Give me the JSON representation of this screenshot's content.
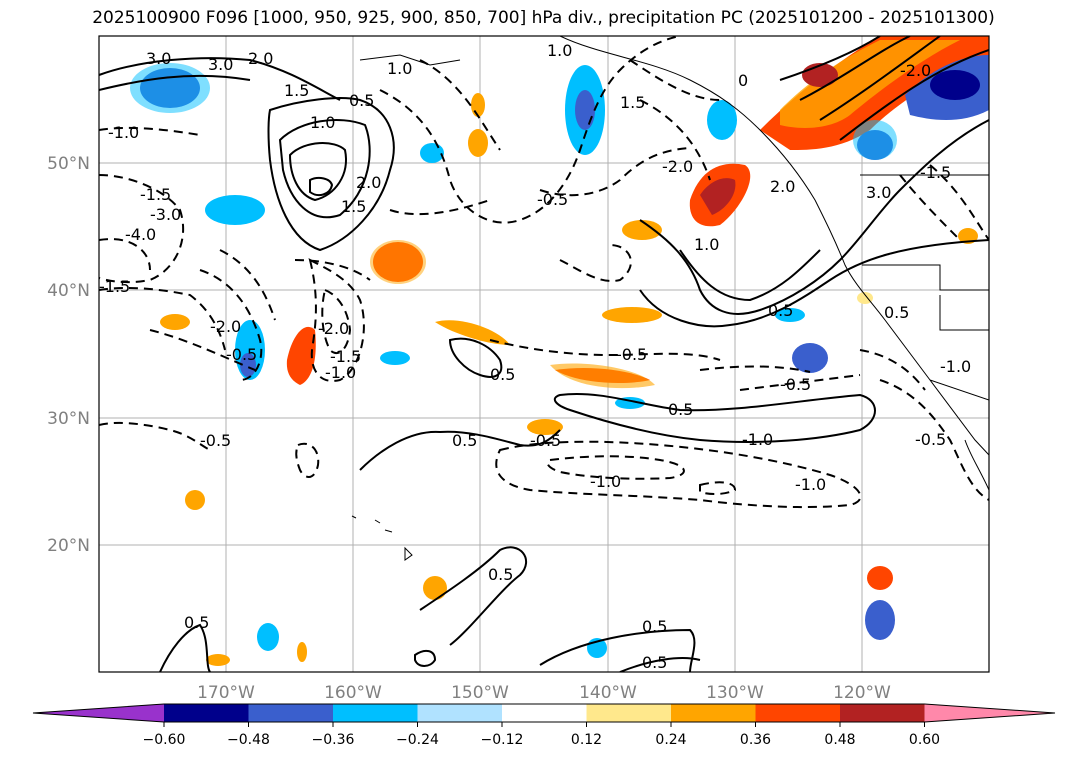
{
  "title": "2025100900 F096 [1000, 950, 925, 900, 850, 700] hPa div., precipitation PC (2025101200 - 2025101300)",
  "map": {
    "lat_labels": [
      "50°N",
      "40°N",
      "30°N",
      "20°N"
    ],
    "lon_labels": [
      "170°W",
      "160°W",
      "150°W",
      "140°W",
      "130°W",
      "120°W"
    ],
    "contour_labels": [
      "3.0",
      "3.0",
      "2.0",
      "1.5",
      "1.0",
      "1.0",
      "0.5",
      "2.0",
      "1.5",
      "1.0",
      "1.5",
      "-1.0",
      "-1.5",
      "-3.0",
      "-4.0",
      "-1.5",
      "-2.0",
      "-0.5",
      "-2.0",
      "-1.5",
      "-1.0",
      "-2.0",
      "-0.5",
      "0",
      "2.0",
      "1.0",
      "-0.5",
      "0.5",
      "-0.5",
      "0.5",
      "0.5",
      "-0.5",
      "0.5",
      "-1.0",
      "0.5",
      "-1.0",
      "-1.0",
      "0.5",
      "0.5",
      "0.5",
      "0.5",
      "-0.5",
      "-0.5",
      "3.0",
      "-1.5",
      "-2.0",
      "-1.0"
    ]
  },
  "colorbar": {
    "ticks": [
      "−0.60",
      "−0.48",
      "−0.36",
      "−0.24",
      "−0.12",
      "0.12",
      "0.24",
      "0.36",
      "0.48",
      "0.60"
    ],
    "colors": [
      "#9932CC",
      "#00008B",
      "#3A5FCD",
      "#00BFFF",
      "#B0E2FF",
      "#FFFFFF",
      "#FFE88C",
      "#FFA500",
      "#FF4500",
      "#B22222",
      "#FF88AA"
    ]
  }
}
